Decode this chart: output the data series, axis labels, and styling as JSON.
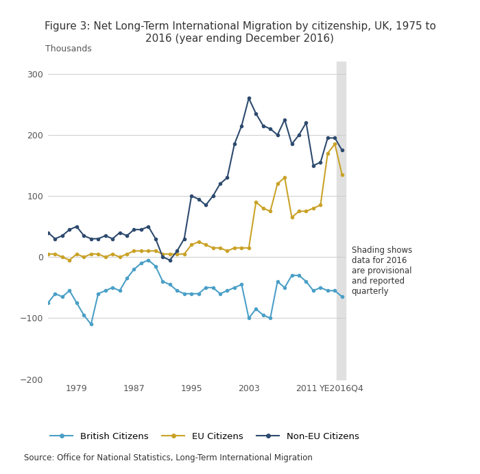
{
  "title": "Figure 3: Net Long-Term International Migration by citizenship, UK, 1975 to\n2016 (year ending December 2016)",
  "ylabel": "Thousands",
  "source": "Source: Office for National Statistics, Long-Term International Migration",
  "ylim": [
    -200,
    320
  ],
  "yticks": [
    -200,
    -100,
    0,
    100,
    200,
    300
  ],
  "shading_annotation": "Shading shows\ndata for 2016\nare provisional\nand reported\nquarterly",
  "legend_labels": [
    "British Citizens",
    "EU Citizens",
    "Non-EU Citizens"
  ],
  "colors": {
    "british": "#4a9fc7",
    "eu": "#c9a227",
    "noneu": "#2d4a6e"
  },
  "x_tick_positions": [
    1979,
    1987,
    1995,
    2003,
    2011,
    2016
  ],
  "x_labels": [
    "1979",
    "1987",
    "1995",
    "2003",
    "2011",
    "YE2016Q4"
  ],
  "british_x": [
    1975,
    1976,
    1977,
    1978,
    1979,
    1980,
    1981,
    1982,
    1983,
    1984,
    1985,
    1986,
    1987,
    1988,
    1989,
    1990,
    1991,
    1992,
    1993,
    1994,
    1995,
    1996,
    1997,
    1998,
    1999,
    2000,
    2001,
    2002,
    2003,
    2004,
    2005,
    2006,
    2007,
    2008,
    2009,
    2010,
    2011,
    2012,
    2013,
    2014,
    2015,
    2016
  ],
  "british_y": [
    -75,
    -60,
    -65,
    -55,
    -75,
    -95,
    -110,
    -60,
    -55,
    -50,
    -55,
    -35,
    -20,
    -10,
    -5,
    -15,
    -40,
    -45,
    -55,
    -60,
    -60,
    -60,
    -50,
    -50,
    -60,
    -55,
    -50,
    -45,
    -100,
    -85,
    -95,
    -100,
    -40,
    -50,
    -30,
    -30,
    -40,
    -55,
    -50,
    -55,
    -55,
    -65
  ],
  "eu_x": [
    1975,
    1976,
    1977,
    1978,
    1979,
    1980,
    1981,
    1982,
    1983,
    1984,
    1985,
    1986,
    1987,
    1988,
    1989,
    1990,
    1991,
    1992,
    1993,
    1994,
    1995,
    1996,
    1997,
    1998,
    1999,
    2000,
    2001,
    2002,
    2003,
    2004,
    2005,
    2006,
    2007,
    2008,
    2009,
    2010,
    2011,
    2012,
    2013,
    2014,
    2015,
    2016
  ],
  "eu_y": [
    5,
    5,
    0,
    -5,
    5,
    0,
    5,
    5,
    0,
    5,
    0,
    5,
    10,
    10,
    10,
    10,
    5,
    5,
    5,
    5,
    20,
    25,
    20,
    15,
    15,
    10,
    15,
    15,
    15,
    90,
    80,
    75,
    120,
    130,
    65,
    75,
    75,
    80,
    85,
    170,
    185,
    135
  ],
  "noneu_x": [
    1975,
    1976,
    1977,
    1978,
    1979,
    1980,
    1981,
    1982,
    1983,
    1984,
    1985,
    1986,
    1987,
    1988,
    1989,
    1990,
    1991,
    1992,
    1993,
    1994,
    1995,
    1996,
    1997,
    1998,
    1999,
    2000,
    2001,
    2002,
    2003,
    2004,
    2005,
    2006,
    2007,
    2008,
    2009,
    2010,
    2011,
    2012,
    2013,
    2014,
    2015,
    2016
  ],
  "noneu_y": [
    40,
    30,
    35,
    45,
    50,
    35,
    30,
    30,
    35,
    30,
    40,
    35,
    45,
    45,
    50,
    30,
    0,
    -5,
    10,
    30,
    100,
    95,
    85,
    100,
    120,
    130,
    185,
    215,
    260,
    235,
    215,
    210,
    200,
    225,
    185,
    200,
    220,
    150,
    155,
    195,
    195,
    175
  ],
  "shading_xstart": 2015.3,
  "xlim_left": 1975,
  "xlim_right": 2016.5
}
